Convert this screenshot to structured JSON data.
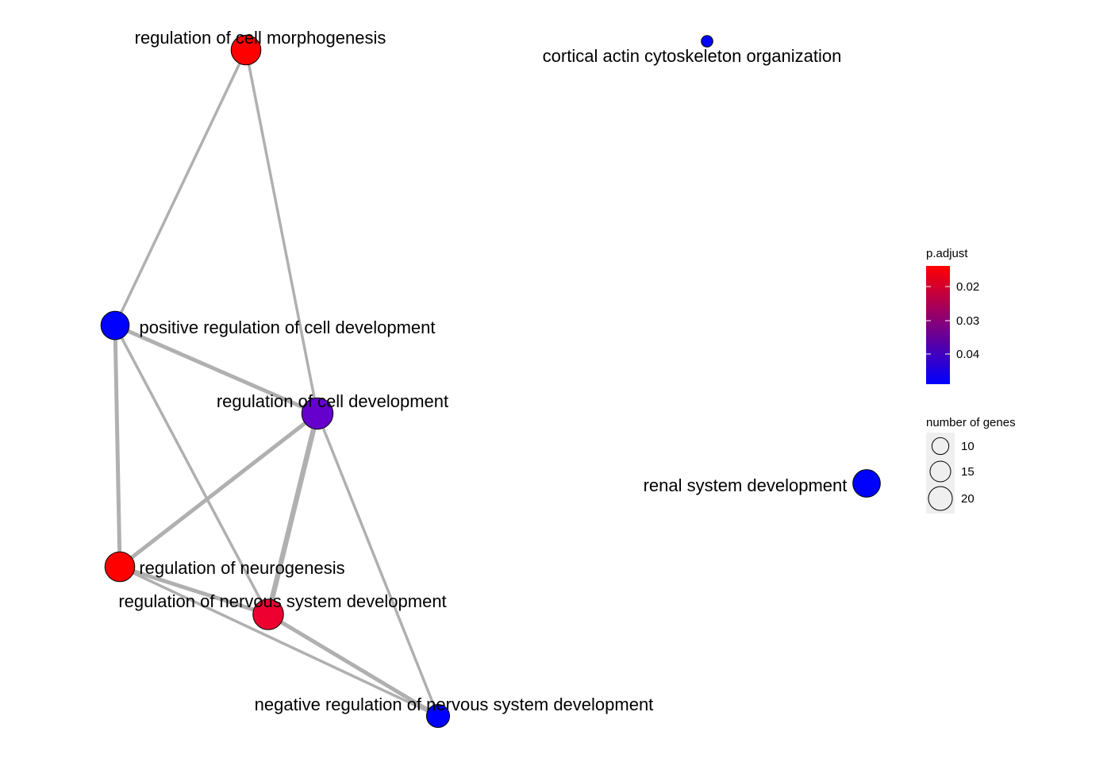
{
  "nodes": [
    {
      "id": "morph",
      "label": "regulation of cell morphogenesis",
      "color": "#ff0000",
      "genes": 20
    },
    {
      "id": "actin",
      "label": "cortical actin cytoskeleton organization",
      "color": "#0000ff",
      "genes": 3
    },
    {
      "id": "posdev",
      "label": "positive regulation of cell development",
      "color": "#0000ff",
      "genes": 18
    },
    {
      "id": "celldev",
      "label": "regulation of cell development",
      "color": "#6600cc",
      "genes": 22
    },
    {
      "id": "renal",
      "label": "renal system development",
      "color": "#0000ff",
      "genes": 17
    },
    {
      "id": "neuro",
      "label": "regulation of neurogenesis",
      "color": "#ff0000",
      "genes": 20
    },
    {
      "id": "nervdev",
      "label": "regulation of nervous system development",
      "color": "#ee0030",
      "genes": 21
    },
    {
      "id": "negnerv",
      "label": "negative regulation of nervous system development",
      "color": "#0000ff",
      "genes": 12
    }
  ],
  "edges": [
    {
      "source": "morph",
      "target": "posdev",
      "weight": 1
    },
    {
      "source": "morph",
      "target": "celldev",
      "weight": 1
    },
    {
      "source": "posdev",
      "target": "celldev",
      "weight": 2
    },
    {
      "source": "posdev",
      "target": "neuro",
      "weight": 2
    },
    {
      "source": "posdev",
      "target": "nervdev",
      "weight": 1
    },
    {
      "source": "celldev",
      "target": "neuro",
      "weight": 2
    },
    {
      "source": "celldev",
      "target": "nervdev",
      "weight": 3
    },
    {
      "source": "celldev",
      "target": "negnerv",
      "weight": 1
    },
    {
      "source": "neuro",
      "target": "nervdev",
      "weight": 2
    },
    {
      "source": "neuro",
      "target": "negnerv",
      "weight": 1
    },
    {
      "source": "nervdev",
      "target": "negnerv",
      "weight": 2
    }
  ],
  "edge_color": "#b0b0b0",
  "legend": {
    "color_title": "p.adjust",
    "color_ticks": [
      "0.02",
      "0.03",
      "0.04"
    ],
    "color_high": "#ff0000",
    "color_low": "#0000ff",
    "size_title": "number of genes",
    "size_ticks": [
      10,
      15,
      20
    ]
  }
}
